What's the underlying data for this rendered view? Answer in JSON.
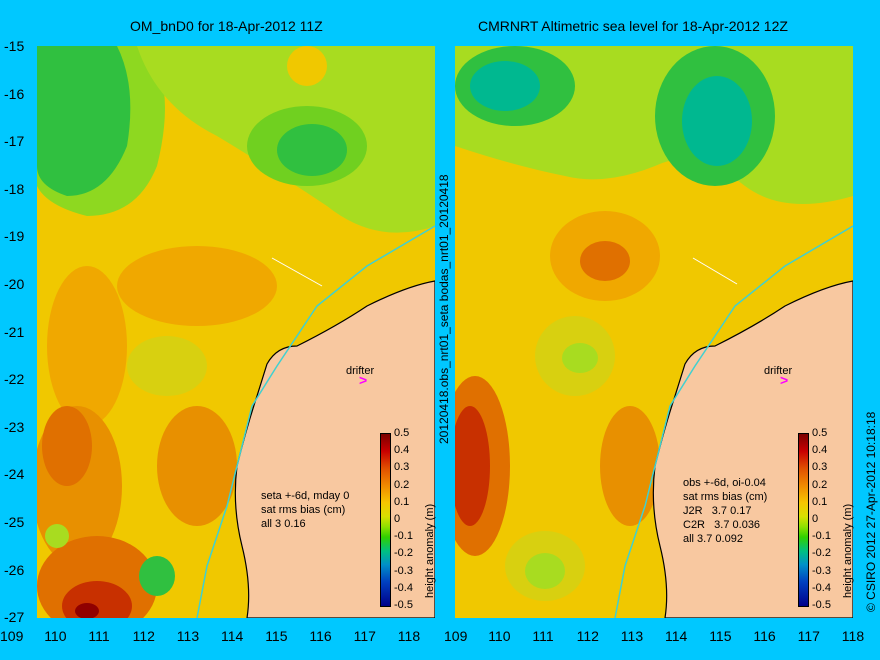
{
  "left_panel": {
    "title": "OM_bnD0 for 18-Apr-2012 11Z",
    "info_lines": [
      "seta +-6d, mday 0",
      "sat rms bias (cm)",
      "all 3 0.16"
    ],
    "drifter_label": "drifter"
  },
  "right_panel": {
    "title": "CMRNRT Altimetric sea level  for 18-Apr-2012 12Z",
    "info_lines": [
      "obs +-6d, oi-0.04",
      "sat rms bias (cm)",
      "J2R   3.7 0.17",
      "C2R   3.7 0.036",
      "all 3.7 0.092"
    ],
    "drifter_label": "drifter"
  },
  "axes": {
    "lat_ticks": [
      "-15",
      "-16",
      "-17",
      "-18",
      "-19",
      "-20",
      "-21",
      "-22",
      "-23",
      "-24",
      "-25",
      "-26",
      "-27"
    ],
    "lon_ticks": [
      "109",
      "110",
      "111",
      "112",
      "113",
      "114",
      "115",
      "116",
      "117",
      "118"
    ],
    "right_lon_ticks": [
      "109",
      "110",
      "111",
      "112",
      "113",
      "114",
      "115",
      "116",
      "117",
      "118"
    ]
  },
  "colorbar": {
    "label": "height anomaly (m)",
    "ticks": [
      "0.5",
      "0.4",
      "0.3",
      "0.2",
      "0.1",
      "0",
      "-0.1",
      "-0.2",
      "-0.3",
      "-0.4",
      "-0.5"
    ],
    "colors": [
      "#7a0000",
      "#c80000",
      "#f08a00",
      "#f6c600",
      "#8ee000",
      "#00c080",
      "#0040c0",
      "#00008a"
    ]
  },
  "side_text": {
    "middle": "20120418.obs_nrt01_seta  bodas_nrt01_20120418",
    "right": "© CSIRO 2012   27-Apr-2012 10:18:18"
  },
  "colors": {
    "background": "#00c8ff",
    "land": "#f8c8a0",
    "coastline": "#000000",
    "shelf_contour": "#40d0d0",
    "drifter": "#ff00ff"
  }
}
